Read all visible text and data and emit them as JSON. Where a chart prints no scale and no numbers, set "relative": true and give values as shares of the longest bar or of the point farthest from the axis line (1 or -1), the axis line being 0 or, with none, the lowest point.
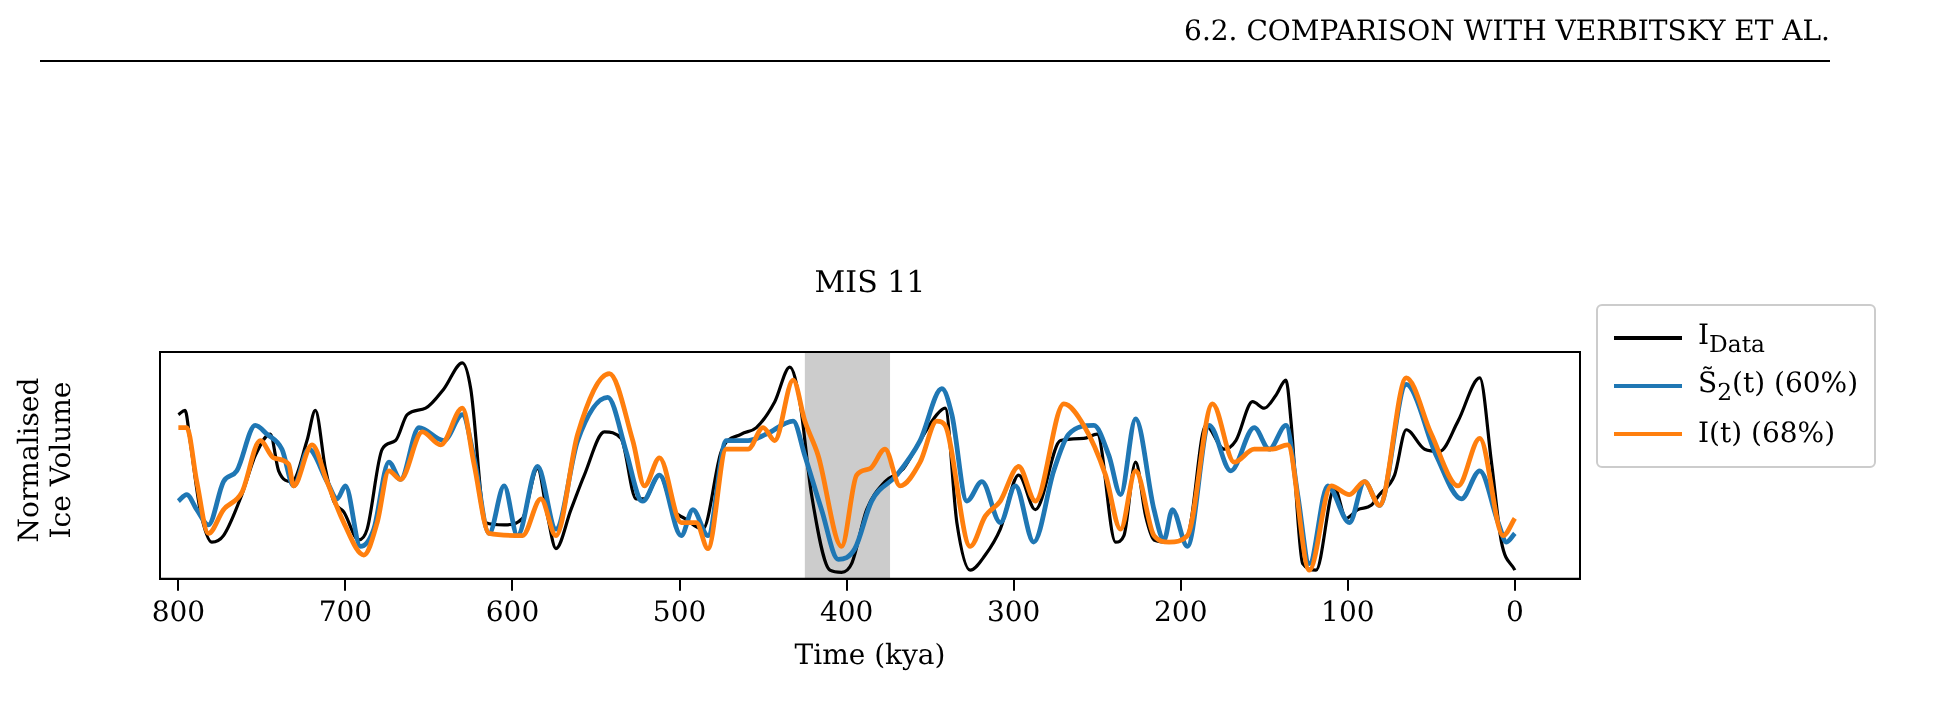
{
  "chart_data": {
    "type": "line",
    "title": "MIS 11",
    "xlabel": "Time (kya)",
    "ylabel": "Normalised Ice Volume",
    "relative": true,
    "legend": "right",
    "xlim": [
      811,
      -39
    ],
    "xticks": [
      800,
      700,
      600,
      500,
      400,
      300,
      200,
      100,
      0
    ],
    "annotations": [
      "6.2. COMPARISON WITH VERBITSKY ET AL."
    ],
    "bands": [
      {
        "axis": "x",
        "from": 425,
        "to": 374,
        "color": "#cccccc"
      }
    ],
    "series": [
      {
        "name": "I$_{Data}$",
        "color": "#000000",
        "x": [
          800,
          796,
          793,
          787,
          780,
          773,
          762,
          754,
          745,
          740,
          732,
          723,
          718,
          712,
          707,
          701,
          692,
          687,
          678,
          670,
          663,
          652,
          641,
          630,
          625,
          616,
          605,
          594,
          585,
          579,
          574,
          565,
          557,
          545,
          535,
          526,
          521,
          512,
          504,
          497,
          486,
          475,
          463,
          454,
          443,
          434,
          428,
          421,
          410,
          403,
          397,
          388,
          377,
          366,
          356,
          346,
          341,
          334,
          326,
          317,
          308,
          297,
          287,
          272,
          258,
          250,
          239,
          234,
          227,
          221,
          216,
          207,
          196,
          185,
          174,
          167,
          157,
          150,
          143,
          137,
          134,
          127,
          119,
          108,
          101,
          94,
          86,
          81,
          72,
          65,
          54,
          45,
          34,
          21,
          14,
          8,
          0
        ],
        "values": [
          0.76,
          0.78,
          0.64,
          0.32,
          0.17,
          0.2,
          0.39,
          0.57,
          0.67,
          0.5,
          0.45,
          0.64,
          0.78,
          0.51,
          0.36,
          0.31,
          0.18,
          0.23,
          0.6,
          0.64,
          0.76,
          0.79,
          0.88,
          1.0,
          0.88,
          0.26,
          0.25,
          0.28,
          0.51,
          0.29,
          0.14,
          0.32,
          0.48,
          0.68,
          0.65,
          0.37,
          0.37,
          0.48,
          0.32,
          0.28,
          0.23,
          0.59,
          0.67,
          0.7,
          0.82,
          0.98,
          0.82,
          0.39,
          0.04,
          0.03,
          0.07,
          0.32,
          0.45,
          0.51,
          0.64,
          0.76,
          0.79,
          0.26,
          0.04,
          0.11,
          0.23,
          0.48,
          0.32,
          0.64,
          0.65,
          0.67,
          0.17,
          0.2,
          0.54,
          0.29,
          0.18,
          0.17,
          0.2,
          0.71,
          0.6,
          0.64,
          0.82,
          0.79,
          0.85,
          0.92,
          0.73,
          0.07,
          0.04,
          0.42,
          0.28,
          0.32,
          0.34,
          0.39,
          0.48,
          0.69,
          0.6,
          0.59,
          0.73,
          0.93,
          0.54,
          0.17,
          0.04
        ]
      },
      {
        "name": "S̃$_{2}$(t) (60%)",
        "color": "#1f77b4",
        "x": [
          800,
          795,
          789,
          782,
          773,
          765,
          754,
          747,
          738,
          731,
          722,
          711,
          705,
          700,
          691,
          683,
          674,
          667,
          656,
          641,
          630,
          623,
          614,
          605,
          597,
          585,
          574,
          561,
          543,
          532,
          524,
          522,
          512,
          499,
          492,
          483,
          472,
          459,
          448,
          432,
          425,
          415,
          405,
          395,
          385,
          370,
          356,
          343,
          337,
          328,
          319,
          308,
          299,
          288,
          276,
          267,
          252,
          243,
          236,
          227,
          216,
          210,
          205,
          196,
          183,
          170,
          156,
          147,
          137,
          130,
          123,
          112,
          99,
          90,
          81,
          65,
          47,
          32,
          21,
          10,
          5,
          0
        ],
        "values": [
          0.36,
          0.39,
          0.32,
          0.25,
          0.45,
          0.5,
          0.71,
          0.67,
          0.6,
          0.43,
          0.6,
          0.45,
          0.37,
          0.43,
          0.15,
          0.23,
          0.54,
          0.46,
          0.7,
          0.64,
          0.76,
          0.56,
          0.21,
          0.43,
          0.2,
          0.52,
          0.23,
          0.64,
          0.84,
          0.59,
          0.37,
          0.36,
          0.48,
          0.2,
          0.32,
          0.2,
          0.64,
          0.64,
          0.67,
          0.73,
          0.57,
          0.32,
          0.09,
          0.14,
          0.36,
          0.48,
          0.64,
          0.88,
          0.76,
          0.36,
          0.45,
          0.26,
          0.43,
          0.17,
          0.5,
          0.67,
          0.71,
          0.57,
          0.39,
          0.74,
          0.32,
          0.18,
          0.32,
          0.15,
          0.71,
          0.5,
          0.7,
          0.6,
          0.71,
          0.39,
          0.07,
          0.43,
          0.26,
          0.45,
          0.34,
          0.9,
          0.57,
          0.37,
          0.5,
          0.26,
          0.17,
          0.21
        ]
      },
      {
        "name": "I(t) (68%)",
        "color": "#ff7f0e",
        "x": [
          800,
          795,
          789,
          782,
          773,
          762,
          751,
          743,
          734,
          731,
          720,
          711,
          701,
          689,
          681,
          674,
          667,
          654,
          643,
          630,
          623,
          614,
          594,
          583,
          574,
          561,
          542,
          528,
          521,
          512,
          499,
          490,
          483,
          472,
          459,
          450,
          443,
          432,
          425,
          417,
          403,
          394,
          386,
          377,
          368,
          356,
          346,
          341,
          326,
          317,
          308,
          297,
          287,
          270,
          258,
          245,
          236,
          227,
          216,
          207,
          196,
          181,
          168,
          156,
          145,
          136,
          123,
          110,
          99,
          90,
          81,
          65,
          50,
          34,
          21,
          7,
          0
        ],
        "values": [
          0.7,
          0.7,
          0.45,
          0.21,
          0.32,
          0.4,
          0.64,
          0.56,
          0.53,
          0.43,
          0.62,
          0.45,
          0.26,
          0.11,
          0.26,
          0.5,
          0.46,
          0.68,
          0.62,
          0.79,
          0.53,
          0.21,
          0.2,
          0.37,
          0.2,
          0.67,
          0.95,
          0.64,
          0.43,
          0.56,
          0.26,
          0.26,
          0.14,
          0.6,
          0.6,
          0.7,
          0.64,
          0.92,
          0.73,
          0.57,
          0.15,
          0.48,
          0.51,
          0.6,
          0.43,
          0.54,
          0.73,
          0.71,
          0.15,
          0.29,
          0.36,
          0.52,
          0.36,
          0.81,
          0.71,
          0.48,
          0.23,
          0.5,
          0.2,
          0.17,
          0.2,
          0.81,
          0.54,
          0.6,
          0.6,
          0.62,
          0.04,
          0.43,
          0.39,
          0.45,
          0.34,
          0.93,
          0.67,
          0.43,
          0.65,
          0.2,
          0.28
        ]
      }
    ]
  }
}
